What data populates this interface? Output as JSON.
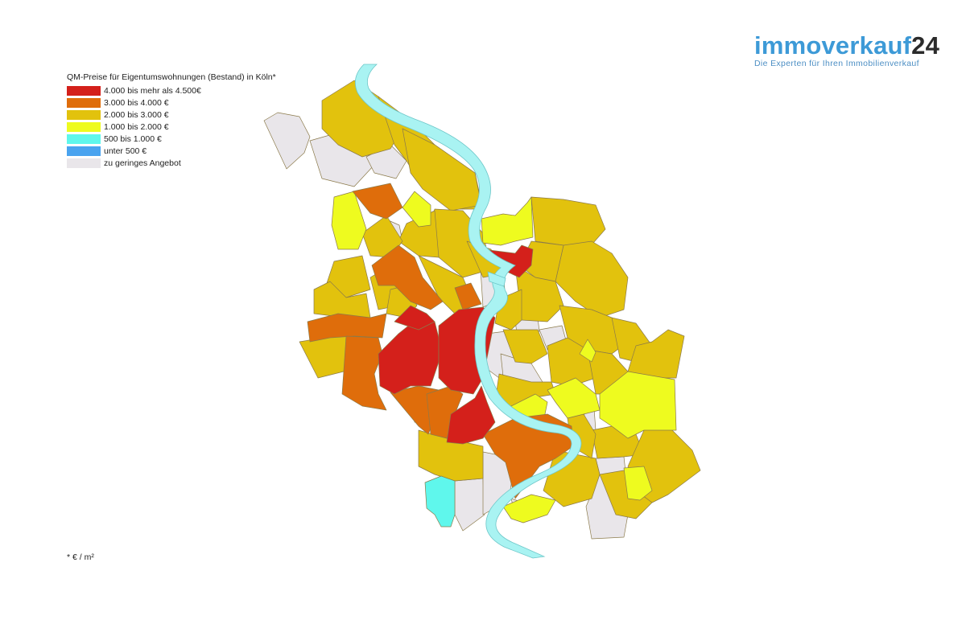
{
  "logo": {
    "word": "immoverkauf",
    "number": "24",
    "tagline": "Die Experten für Ihren Immobilienverkauf"
  },
  "legend": {
    "title": "QM-Preise für Eigentumswohnungen (Bestand) in Köln*",
    "items": [
      {
        "label": "4.000 bis mehr als 4.500€",
        "color": "#d4201b"
      },
      {
        "label": "3.000 bis 4.000 €",
        "color": "#df6d0b"
      },
      {
        "label": "2.000 bis 3.000 €",
        "color": "#e2c20d"
      },
      {
        "label": "1.000 bis 2.000 €",
        "color": "#eefb1f"
      },
      {
        "label": "500 bis 1.000 €",
        "color": "#5ff7ec"
      },
      {
        "label": "unter 500 €",
        "color": "#4aa3ef"
      },
      {
        "label": "zu geringes Angebot",
        "color": "#e9e6ea"
      }
    ]
  },
  "footnote": "* € / m²"
}
